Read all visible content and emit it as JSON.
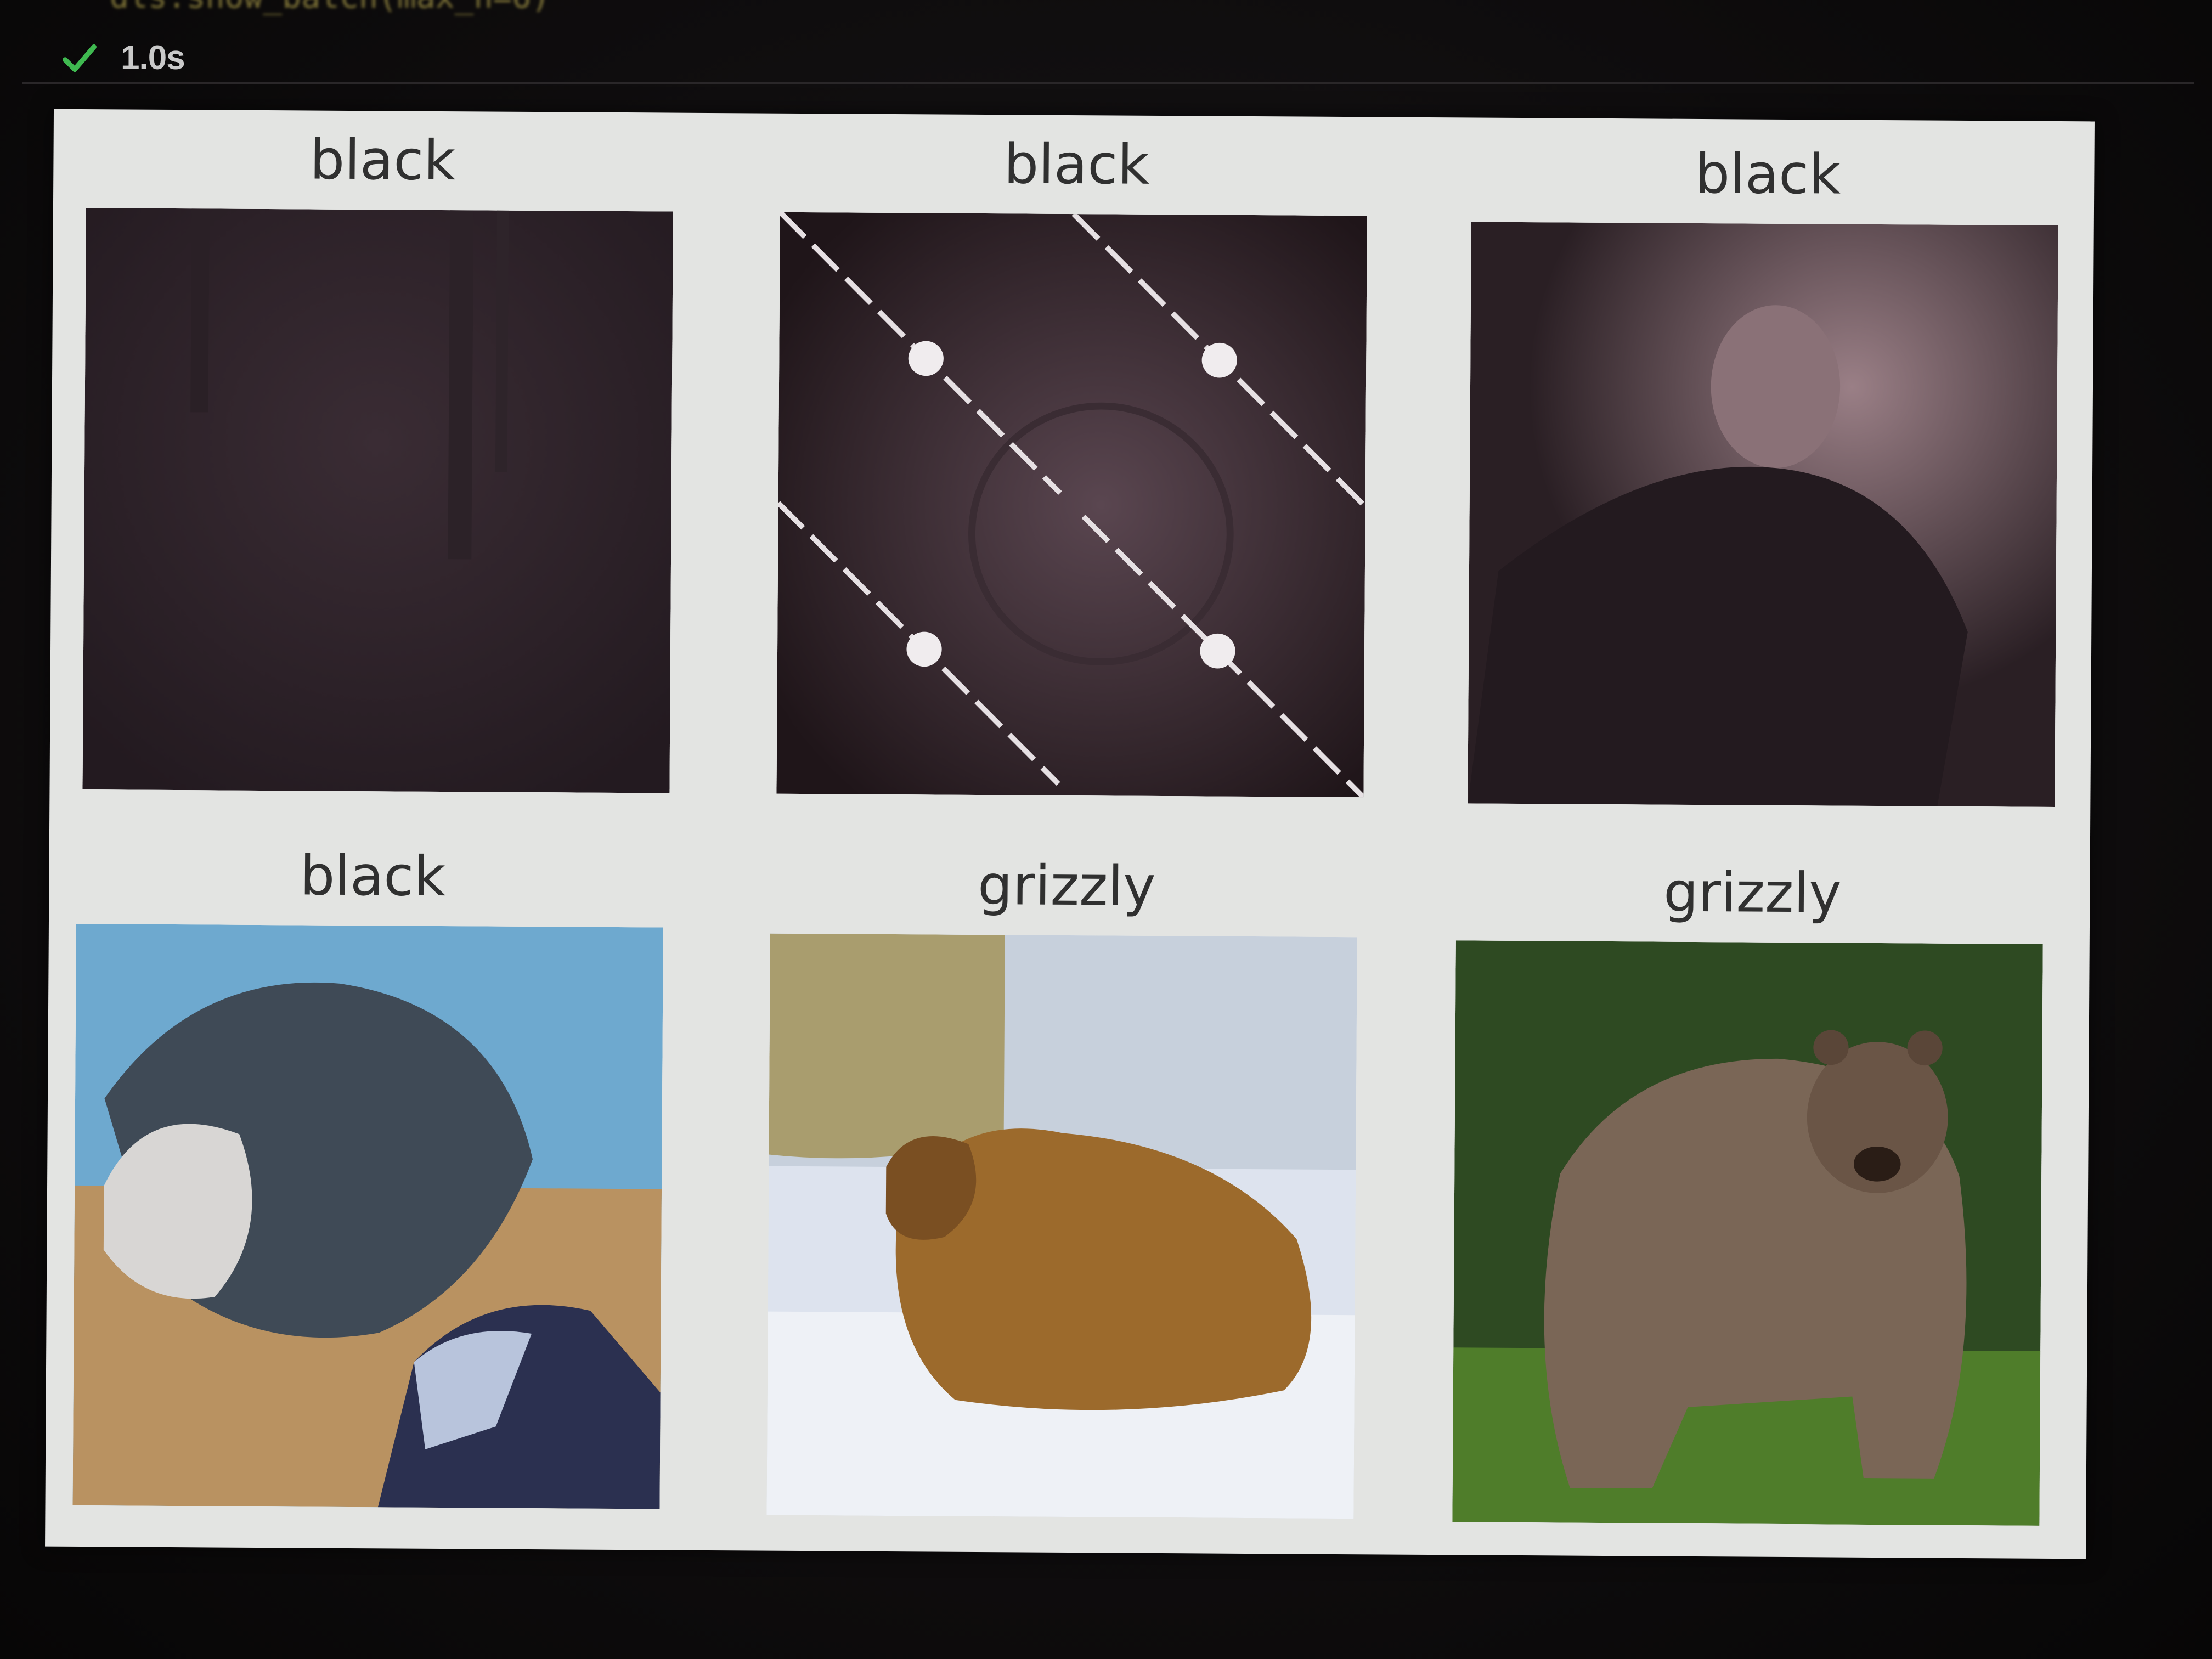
{
  "cell": {
    "status_icon": "check-icon",
    "duration": "1.0s",
    "status_color": "#3fb950"
  },
  "grid": {
    "panels": [
      {
        "label": "black",
        "image": "dark night forest"
      },
      {
        "label": "black",
        "image": "dark watermarked stock photo"
      },
      {
        "label": "black",
        "image": "man in dark clothing"
      },
      {
        "label": "black",
        "image": "person holding creature"
      },
      {
        "label": "grizzly",
        "image": "brown bear in snow"
      },
      {
        "label": "grizzly",
        "image": "grizzly bear in grass"
      }
    ]
  }
}
